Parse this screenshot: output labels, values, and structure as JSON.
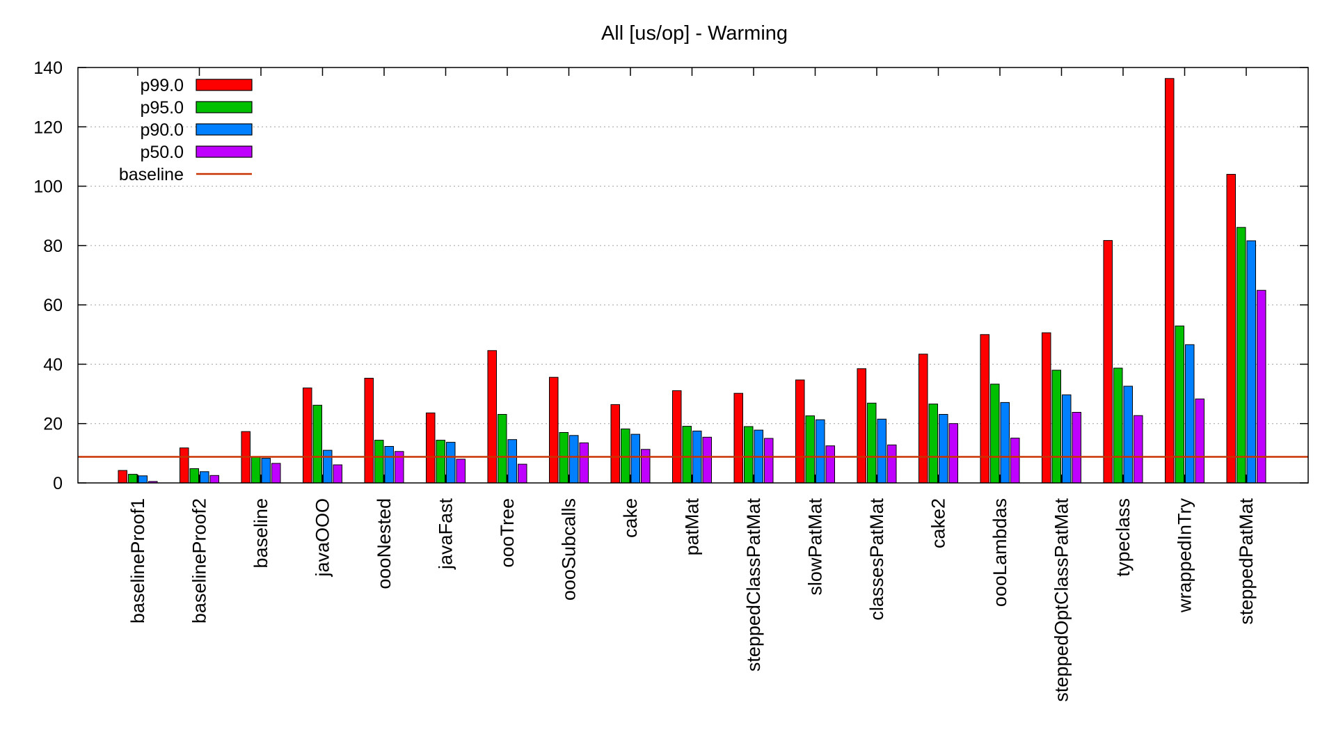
{
  "chart_data": {
    "type": "bar",
    "title": "All [us/op] - Warming",
    "xlabel": "",
    "ylabel": "",
    "ylim": [
      0,
      140
    ],
    "yticks": [
      0,
      20,
      40,
      60,
      80,
      100,
      120,
      140
    ],
    "ytick_labels": [
      "0",
      "20",
      "40",
      "60",
      "80",
      "100",
      "120",
      "140"
    ],
    "grid": true,
    "legend_position": "top-left",
    "categories": [
      "baselineProof1",
      "baselineProof2",
      "baseline",
      "javaOOO",
      "oooNested",
      "javaFast",
      "oooTree",
      "oooSubcalls",
      "cake",
      "patMat",
      "steppedClassPatMat",
      "slowPatMat",
      "classesPatMat",
      "cake2",
      "oooLambdas",
      "steppedOptClassPatMat",
      "typeclass",
      "wrappedInTry",
      "steppedPatMat"
    ],
    "series": [
      {
        "name": "p99.0",
        "color": "#ff0000",
        "values": [
          4.2,
          11.8,
          17.3,
          32.0,
          35.3,
          23.6,
          44.6,
          35.6,
          26.4,
          31.1,
          30.2,
          34.7,
          38.5,
          43.4,
          50.0,
          50.6,
          81.7,
          136.3,
          104.0
        ]
      },
      {
        "name": "p95.0",
        "color": "#00c000",
        "values": [
          2.9,
          4.8,
          8.8,
          26.2,
          14.4,
          14.4,
          23.1,
          17.0,
          18.2,
          19.1,
          19.0,
          22.6,
          26.9,
          26.6,
          33.3,
          38.0,
          38.7,
          52.9,
          86.1
        ]
      },
      {
        "name": "p90.0",
        "color": "#0080ff",
        "values": [
          2.4,
          3.8,
          8.3,
          11.0,
          12.3,
          13.7,
          14.6,
          16.0,
          16.4,
          17.5,
          17.8,
          21.3,
          21.5,
          23.1,
          27.1,
          29.7,
          32.6,
          46.6,
          81.6
        ]
      },
      {
        "name": "p50.0",
        "color": "#c000ff",
        "values": [
          0.5,
          2.5,
          6.6,
          6.1,
          10.6,
          8.0,
          6.3,
          13.5,
          11.3,
          15.4,
          15.0,
          12.5,
          12.8,
          20.0,
          15.1,
          23.8,
          22.7,
          28.3,
          64.9
        ]
      }
    ],
    "reference_line": {
      "name": "baseline",
      "color": "#c83200",
      "value": 8.8
    }
  }
}
